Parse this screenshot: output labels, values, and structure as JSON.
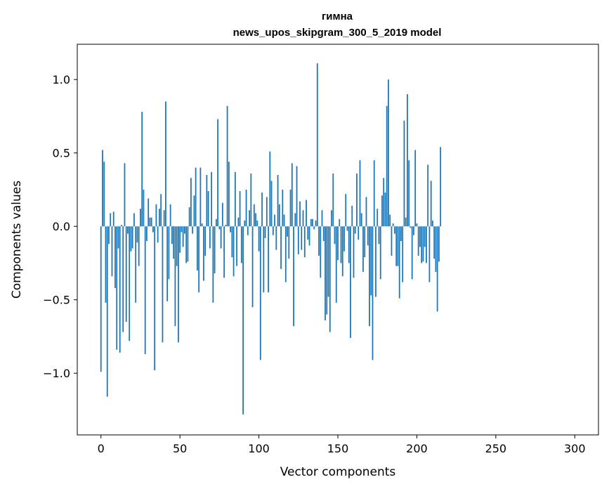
{
  "chart_data": {
    "type": "bar",
    "title_line1": "гимна",
    "title_line2": "news_upos_skipgram_300_5_2019 model",
    "xlabel": "Vector components",
    "ylabel": "Components values",
    "xlim": [
      -15,
      315
    ],
    "ylim": [
      -1.42,
      1.24
    ],
    "x_ticks": [
      0,
      50,
      100,
      150,
      200,
      250,
      300
    ],
    "y_ticks": [
      -1.0,
      -0.5,
      0.0,
      0.5,
      1.0
    ],
    "y_tick_labels": [
      "−1.0",
      "−0.5",
      "0.0",
      "0.5",
      "1.0"
    ],
    "bar_color": "#1f77b4",
    "values": [
      -0.99,
      0.52,
      0.44,
      -0.52,
      -1.16,
      -0.12,
      0.09,
      -0.34,
      0.1,
      -0.42,
      -0.84,
      -0.15,
      -0.86,
      0.01,
      -0.72,
      0.43,
      -0.65,
      -0.05,
      -0.78,
      -0.17,
      -0.15,
      0.09,
      -0.52,
      -0.11,
      -0.27,
      0.12,
      0.78,
      0.25,
      -0.87,
      -0.1,
      0.19,
      0.06,
      0.06,
      -0.04,
      -0.98,
      0.15,
      -0.11,
      0.12,
      0.22,
      -0.79,
      0.11,
      0.85,
      -0.51,
      -0.36,
      0.15,
      -0.12,
      -0.22,
      -0.68,
      -0.27,
      -0.79,
      -0.18,
      -0.04,
      -0.14,
      -0.05,
      -0.25,
      -0.24,
      0.13,
      0.33,
      -0.05,
      0.21,
      0.4,
      -0.3,
      -0.45,
      0.4,
      0.02,
      -0.37,
      -0.2,
      0.35,
      0.24,
      -0.15,
      0.37,
      -0.52,
      -0.32,
      0.05,
      0.73,
      -0.02,
      -0.15,
      0.16,
      -0.35,
      0.01,
      0.82,
      0.44,
      -0.04,
      -0.21,
      -0.34,
      0.37,
      -0.27,
      0.06,
      0.24,
      -0.25,
      -1.28,
      0.04,
      0.25,
      -0.06,
      0.11,
      0.36,
      -0.55,
      0.15,
      0.09,
      0.04,
      -0.17,
      -0.91,
      0.23,
      -0.45,
      -0.08,
      0.2,
      -0.45,
      0.51,
      0.31,
      -0.06,
      0.08,
      -0.16,
      0.35,
      0.15,
      -0.29,
      0.25,
      0.08,
      -0.38,
      -0.07,
      -0.22,
      0.25,
      0.43,
      -0.68,
      0.09,
      0.41,
      -0.19,
      0.17,
      -0.16,
      0.11,
      -0.21,
      0.18,
      -0.09,
      -0.13,
      0.05,
      0.05,
      -0.02,
      0.04,
      1.11,
      -0.2,
      -0.35,
      0.11,
      -0.1,
      -0.64,
      -0.6,
      -0.48,
      -0.72,
      0.11,
      0.36,
      -0.12,
      -0.52,
      -0.23,
      0.05,
      -0.25,
      -0.34,
      -0.17,
      0.22,
      -0.03,
      -0.25,
      -0.76,
      0.14,
      -0.35,
      -0.05,
      0.36,
      -0.09,
      0.45,
      0.09,
      -0.31,
      -0.21,
      0.2,
      -0.13,
      -0.68,
      -0.47,
      -0.91,
      0.45,
      -0.48,
      0.12,
      -0.12,
      -0.36,
      0.21,
      0.33,
      0.23,
      0.82,
      1.0,
      0.08,
      -0.2,
      0.02,
      -0.05,
      -0.27,
      -0.27,
      -0.49,
      -0.1,
      -0.38,
      0.72,
      0.06,
      0.9,
      0.45,
      -0.01,
      -0.36,
      -0.06,
      0.52,
      0.02,
      -0.2,
      -0.14,
      -0.25,
      -0.24,
      -0.14,
      -0.25,
      0.42,
      -0.38,
      0.31,
      0.04,
      -0.22,
      -0.31,
      -0.58,
      -0.24,
      0.54
    ]
  }
}
